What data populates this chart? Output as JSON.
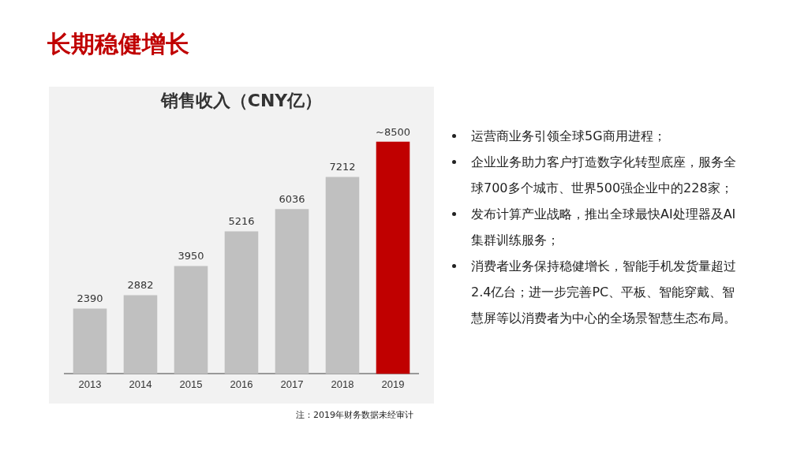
{
  "chart_data": {
    "type": "bar",
    "title": "销售收入（CNY亿）",
    "subtitle": "长期稳健增长",
    "categories": [
      "2013",
      "2014",
      "2015",
      "2016",
      "2017",
      "2018",
      "2019"
    ],
    "values": [
      2390,
      2882,
      3950,
      5216,
      6036,
      7212,
      8500
    ],
    "colors": [
      "#c0c0c0",
      "#c0c0c0",
      "#c0c0c0",
      "#c0c0c0",
      "#c0c0c0",
      "#c0c0c0",
      "#c00000"
    ],
    "value_labels": [
      "2390",
      "2882",
      "3950",
      "5216",
      "6036",
      "7212",
      "~8500"
    ],
    "tick_labels": "x",
    "grid": false,
    "legend": false,
    "annotations": [
      "运营商业务引领全球5G商用进程；",
      "企业业务助力客户打造数字化转型底座，服务全球700多个城市、世界500强企业中的228家；",
      "发布计算产业战略，推出全球最快AI处理器及AI集群训练服务；",
      "消费者业务保持稳健增长，智能手机发货量超过2.4亿台；进一步完善PC、平板、智能穿戴、智慧屏等以消费者为中心的全场景智慧生态布局。",
      "注：2019年财务数据未经审计"
    ]
  }
}
